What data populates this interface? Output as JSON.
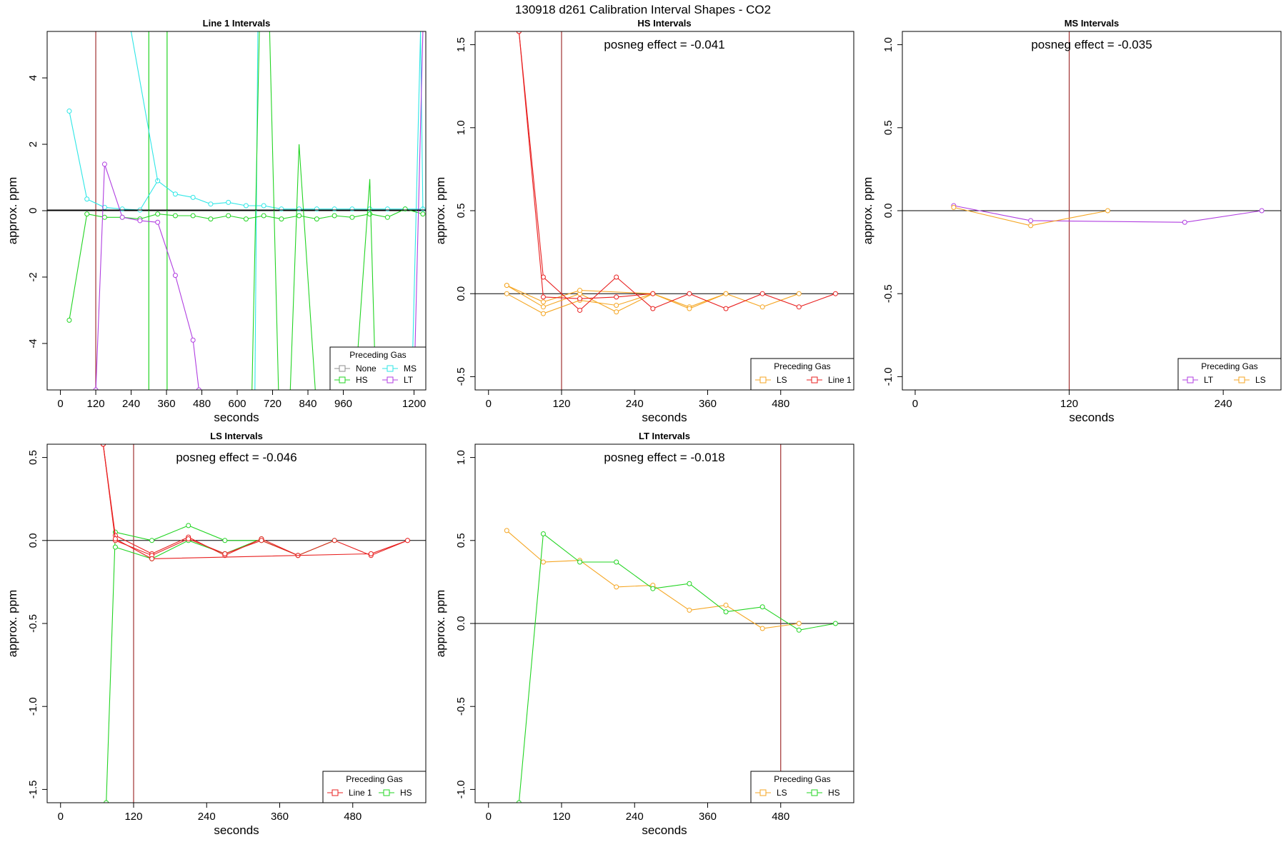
{
  "figure_title": "130918  d261   Calibration Interval Shapes - CO2",
  "colors": {
    "None": "#8c8c8c",
    "HS": "#22d422",
    "MS": "#2ee6e6",
    "LT": "#b03ee0",
    "LS": "#f5a623",
    "Line 1": "#e82020",
    "axis": "#000000",
    "vline": "#a03030"
  },
  "chart_data": [
    {
      "type": "line",
      "title": "Line 1 Intervals",
      "xlabel": "seconds",
      "ylabel": "approx. ppm",
      "xlim": [
        -45,
        1240
      ],
      "ylim": [
        -5.4,
        5.4
      ],
      "xticks": [
        0,
        120,
        240,
        360,
        480,
        600,
        720,
        840,
        960,
        1200
      ],
      "yticks": [
        -4,
        -2,
        0,
        2,
        4
      ],
      "annotation": "",
      "legend": {
        "title": "Preceding Gas",
        "entries": [
          "None",
          "MS",
          "HS",
          "LT"
        ],
        "columns": 2,
        "placement": "bottom-right"
      },
      "vlines": [
        {
          "x": 120,
          "color": "vline"
        },
        {
          "x": 300,
          "color": "HS"
        },
        {
          "x": 362,
          "color": "HS"
        }
      ],
      "series": [
        {
          "name": "MS",
          "color": "MS",
          "x": [
            30,
            90,
            150,
            210,
            270,
            330,
            390,
            450,
            510,
            570,
            630,
            690,
            750,
            810,
            870,
            930,
            990,
            1050,
            1110,
            1170,
            1230
          ],
          "y": [
            3.0,
            0.35,
            0.1,
            0.05,
            0.02,
            0.9,
            0.5,
            0.4,
            0.2,
            0.25,
            0.15,
            0.15,
            0.05,
            0.05,
            0.05,
            0.05,
            0.05,
            0.05,
            0.05,
            0.05,
            0.05
          ],
          "markers": true
        },
        {
          "name": "MS",
          "color": "MS",
          "x": [
            240,
            330
          ],
          "y": [
            5.4,
            0.9
          ],
          "markers": false
        },
        {
          "name": "MS",
          "color": "MS",
          "x": [
            660,
            670
          ],
          "y": [
            -5.4,
            5.4
          ],
          "markers": false
        },
        {
          "name": "MS",
          "color": "MS",
          "x": [
            1195,
            1222,
            1230
          ],
          "y": [
            -4.5,
            5.4,
            0.05
          ],
          "markers": false
        },
        {
          "name": "HS",
          "color": "HS",
          "x": [
            30,
            90,
            150,
            210,
            270,
            330,
            390,
            450,
            510,
            570,
            630,
            690,
            750,
            810,
            870,
            930,
            990,
            1050,
            1110,
            1170,
            1230
          ],
          "y": [
            -3.3,
            -0.1,
            -0.2,
            -0.2,
            -0.25,
            -0.1,
            -0.15,
            -0.15,
            -0.25,
            -0.15,
            -0.25,
            -0.15,
            -0.25,
            -0.15,
            -0.25,
            -0.15,
            -0.2,
            -0.1,
            -0.2,
            0.05,
            -0.1
          ],
          "markers": true
        },
        {
          "name": "HS",
          "color": "HS",
          "x": [
            650,
            675,
            680,
            710,
            740,
            780,
            810,
            865,
            1000,
            1050,
            1070
          ],
          "y": [
            -5.4,
            5.4,
            5.4,
            5.4,
            -5.4,
            -5.4,
            2.0,
            -5.4,
            -5.4,
            0.95,
            -5.4
          ],
          "markers": false
        },
        {
          "name": "LT",
          "color": "LT",
          "x": [
            120,
            150,
            210,
            270,
            330,
            390,
            450,
            470
          ],
          "y": [
            -5.4,
            1.4,
            -0.2,
            -0.3,
            -0.35,
            -1.95,
            -3.9,
            -5.4
          ],
          "markers": true
        },
        {
          "name": "LT",
          "color": "LT",
          "x": [
            1200,
            1230
          ],
          "y": [
            -5.4,
            5.4
          ],
          "markers": false
        },
        {
          "name": "Baseline",
          "color": "axis",
          "x": [
            -45,
            1240
          ],
          "y": [
            0.02,
            0.02
          ],
          "markers": false
        }
      ]
    },
    {
      "type": "line",
      "title": "HS Intervals",
      "xlabel": "seconds",
      "ylabel": "approx. ppm",
      "xlim": [
        -22,
        600
      ],
      "ylim": [
        -0.58,
        1.58
      ],
      "xticks": [
        0,
        120,
        240,
        360,
        480
      ],
      "yticks": [
        -0.5,
        0.0,
        0.5,
        1.0,
        1.5
      ],
      "annotation": "posneg effect = -0.041",
      "legend": {
        "title": "Preceding Gas",
        "entries": [
          "LS",
          "Line 1"
        ],
        "columns": 2,
        "placement": "bottom-right"
      },
      "vlines": [
        {
          "x": 120,
          "color": "vline"
        }
      ],
      "series": [
        {
          "name": "LS",
          "color": "LS",
          "x": [
            30,
            90,
            150,
            210,
            270,
            330,
            390,
            450,
            510
          ],
          "y": [
            0.05,
            -0.08,
            0.0,
            -0.11,
            0.0,
            -0.08,
            0.0,
            -0.08,
            0.0
          ],
          "markers": true
        },
        {
          "name": "LS",
          "color": "LS",
          "x": [
            30,
            90,
            150,
            210,
            270,
            330,
            390
          ],
          "y": [
            0.0,
            -0.12,
            -0.04,
            -0.07,
            0.0,
            -0.09,
            0.0
          ],
          "markers": true
        },
        {
          "name": "LS",
          "color": "LS",
          "x": [
            30,
            90,
            150,
            270
          ],
          "y": [
            0.05,
            -0.05,
            0.02,
            0.0
          ],
          "markers": true
        },
        {
          "name": "Line 1",
          "color": "Line 1",
          "x": [
            50,
            90,
            150,
            210,
            270,
            330,
            390,
            450,
            510,
            570
          ],
          "y": [
            1.58,
            0.1,
            -0.1,
            0.1,
            -0.09,
            0.0,
            -0.09,
            0.0,
            -0.08,
            0.0
          ],
          "markers": true
        },
        {
          "name": "Line 1",
          "color": "Line 1",
          "x": [
            50,
            90,
            150,
            210,
            270
          ],
          "y": [
            1.58,
            -0.02,
            -0.03,
            -0.02,
            0.0
          ],
          "markers": true
        }
      ]
    },
    {
      "type": "line",
      "title": "MS Intervals",
      "xlabel": "seconds",
      "ylabel": "approx. ppm",
      "xlim": [
        -10,
        285
      ],
      "ylim": [
        -1.08,
        1.08
      ],
      "xticks": [
        0,
        120,
        240
      ],
      "yticks": [
        -1.0,
        -0.5,
        0.0,
        0.5,
        1.0
      ],
      "annotation": "posneg effect = -0.035",
      "legend": {
        "title": "Preceding Gas",
        "entries": [
          "LT",
          "LS"
        ],
        "columns": 2,
        "placement": "bottom-right"
      },
      "vlines": [
        {
          "x": 120,
          "color": "vline"
        }
      ],
      "series": [
        {
          "name": "LT",
          "color": "LT",
          "x": [
            30,
            90,
            210,
            270
          ],
          "y": [
            0.03,
            -0.06,
            -0.07,
            0.0
          ],
          "markers": true
        },
        {
          "name": "LS",
          "color": "LS",
          "x": [
            30,
            90,
            150
          ],
          "y": [
            0.02,
            -0.09,
            0.0
          ],
          "markers": true
        }
      ]
    },
    {
      "type": "line",
      "title": "LS Intervals",
      "xlabel": "seconds",
      "ylabel": "approx. ppm",
      "xlim": [
        -22,
        600
      ],
      "ylim": [
        -1.58,
        0.58
      ],
      "xticks": [
        0,
        120,
        240,
        360,
        480
      ],
      "yticks": [
        -1.5,
        -1.0,
        -0.5,
        0.0,
        0.5
      ],
      "annotation": "posneg effect = -0.046",
      "legend": {
        "title": "Preceding Gas",
        "entries": [
          "Line 1",
          "HS"
        ],
        "columns": 2,
        "placement": "bottom-right"
      },
      "vlines": [
        {
          "x": 120,
          "color": "vline"
        }
      ],
      "series": [
        {
          "name": "HS",
          "color": "HS",
          "x": [
            75,
            90,
            150,
            210,
            270,
            330,
            390,
            450
          ],
          "y": [
            -1.58,
            0.05,
            0.0,
            0.09,
            0.0,
            0.0,
            -0.09,
            0.0
          ],
          "markers": true
        },
        {
          "name": "HS",
          "color": "HS",
          "x": [
            90,
            150,
            210,
            270,
            330
          ],
          "y": [
            -0.04,
            -0.11,
            0.0,
            -0.08,
            0.01
          ],
          "markers": true
        },
        {
          "name": "Line 1",
          "color": "Line 1",
          "x": [
            70,
            90,
            150,
            210,
            270,
            330,
            390
          ],
          "y": [
            0.58,
            0.03,
            -0.08,
            0.02,
            -0.09,
            0.01,
            -0.09
          ],
          "markers": true
        },
        {
          "name": "Line 1",
          "color": "Line 1",
          "x": [
            70,
            90,
            150,
            210,
            270,
            330,
            390,
            450,
            510,
            570
          ],
          "y": [
            0.58,
            0.0,
            -0.09,
            0.01,
            -0.08,
            0.0,
            -0.09,
            0.0,
            -0.09,
            0.0
          ],
          "markers": true
        },
        {
          "name": "Line 1",
          "color": "Line 1",
          "x": [
            70,
            90,
            150,
            510,
            570
          ],
          "y": [
            0.58,
            0.01,
            -0.11,
            -0.08,
            0.0
          ],
          "markers": true
        }
      ]
    },
    {
      "type": "line",
      "title": "LT Intervals",
      "xlabel": "seconds",
      "ylabel": "approx. ppm",
      "xlim": [
        -22,
        600
      ],
      "ylim": [
        -1.08,
        1.08
      ],
      "xticks": [
        0,
        120,
        240,
        360,
        480
      ],
      "yticks": [
        -1.0,
        -0.5,
        0.0,
        0.5,
        1.0
      ],
      "annotation": "posneg effect = -0.018",
      "legend": {
        "title": "Preceding Gas",
        "entries": [
          "LS",
          "HS"
        ],
        "columns": 2,
        "placement": "bottom-right"
      },
      "vlines": [
        {
          "x": 480,
          "color": "vline"
        }
      ],
      "series": [
        {
          "name": "LS",
          "color": "LS",
          "x": [
            30,
            90,
            150,
            210,
            270,
            330,
            390,
            450,
            510
          ],
          "y": [
            0.56,
            0.37,
            0.38,
            0.22,
            0.23,
            0.08,
            0.11,
            -0.03,
            0.0
          ],
          "markers": true
        },
        {
          "name": "HS",
          "color": "HS",
          "x": [
            50,
            90,
            150,
            210,
            270,
            330,
            390,
            450,
            510,
            570
          ],
          "y": [
            -1.08,
            0.54,
            0.37,
            0.37,
            0.21,
            0.24,
            0.07,
            0.1,
            -0.04,
            0.0
          ],
          "markers": true
        }
      ]
    }
  ]
}
